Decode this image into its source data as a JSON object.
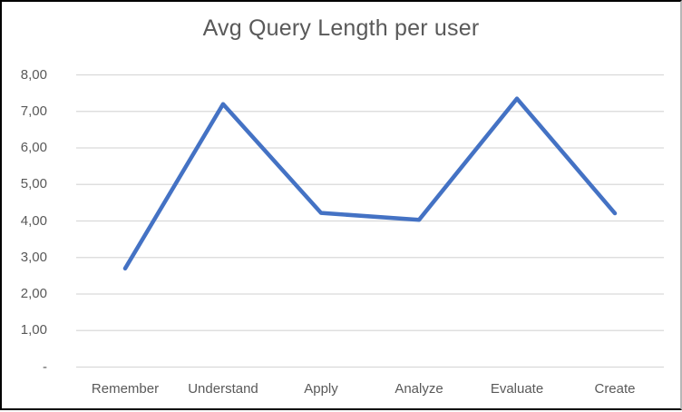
{
  "chart_data": {
    "type": "line",
    "title": "Avg Query Length per user",
    "categories": [
      "Remember",
      "Understand",
      "Apply",
      "Analyze",
      "Evaluate",
      "Create"
    ],
    "values": [
      2.7,
      7.2,
      4.22,
      4.03,
      7.35,
      4.21
    ],
    "xlabel": "",
    "ylabel": "",
    "ylim": [
      0,
      8
    ],
    "y_ticks": [
      8,
      7,
      6,
      5,
      4,
      3,
      2,
      1,
      0
    ],
    "y_tick_labels": [
      "8,00",
      "7,00",
      "6,00",
      "5,00",
      "4,00",
      "3,00",
      "2,00",
      "1,00",
      "-"
    ],
    "grid": true,
    "legend_position": "none",
    "colors": {
      "line": "#4472C4",
      "gridline": "#D9D9D9",
      "text": "#595959",
      "background": "#FFFFFF",
      "frame": "#000000"
    }
  }
}
